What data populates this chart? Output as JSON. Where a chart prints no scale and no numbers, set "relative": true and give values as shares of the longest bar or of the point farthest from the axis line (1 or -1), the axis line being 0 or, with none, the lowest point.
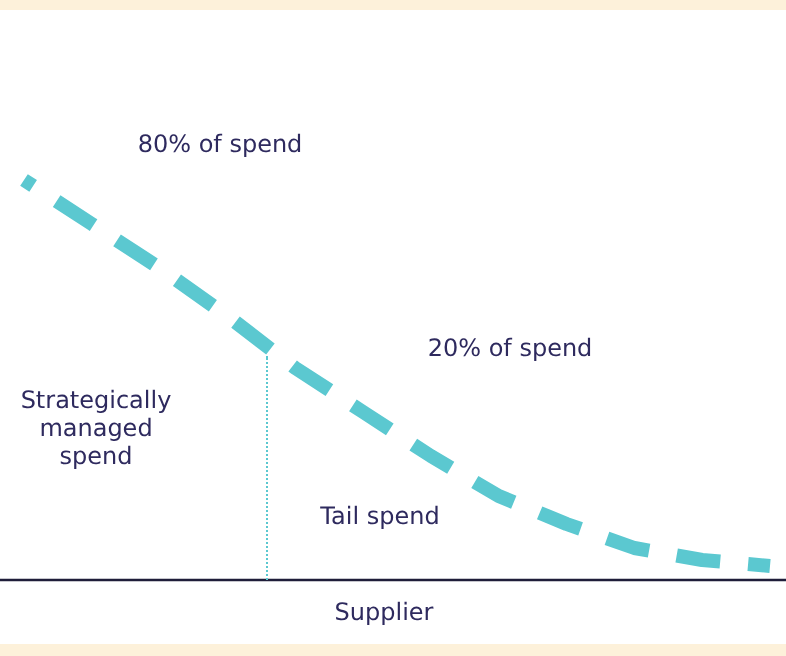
{
  "chart_data": {
    "type": "line",
    "relative": true,
    "xlabel": "Supplier",
    "categories": [
      null,
      null,
      null,
      null,
      null,
      null,
      null,
      null,
      null,
      null,
      null,
      null
    ],
    "series": [
      {
        "color": "#5bc8d0",
        "values": [
          1,
          0.89,
          0.78,
          0.66,
          0.53,
          0.42,
          0.31,
          0.21,
          0.14,
          0.08,
          0.05,
          0.035
        ]
      }
    ],
    "line_style": "dashed",
    "marker": "none",
    "legend": false,
    "annotations": [
      "80% of spend",
      "20% of spend",
      "Strategically managed spend",
      "Tail spend"
    ]
  }
}
